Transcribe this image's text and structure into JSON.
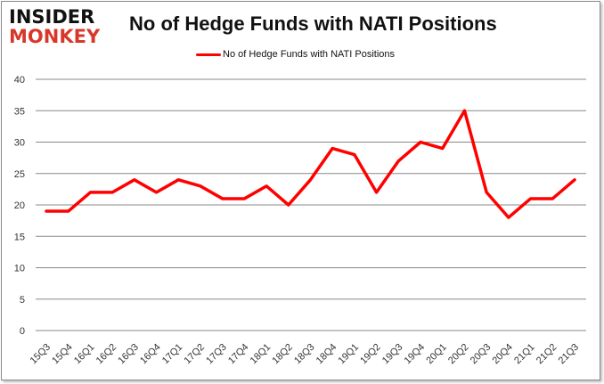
{
  "logo": {
    "line1": "INSIDER",
    "line2": "MONKEY"
  },
  "chart_data": {
    "type": "line",
    "title": "No of Hedge Funds with NATI Positions",
    "xlabel": "",
    "ylabel": "",
    "categories": [
      "15Q3",
      "15Q4",
      "16Q1",
      "16Q2",
      "16Q3",
      "16Q4",
      "17Q1",
      "17Q2",
      "17Q3",
      "17Q4",
      "18Q1",
      "18Q2",
      "18Q3",
      "18Q4",
      "19Q1",
      "19Q2",
      "19Q3",
      "19Q4",
      "20Q1",
      "20Q2",
      "20Q3",
      "20Q4",
      "21Q1",
      "21Q2",
      "21Q3"
    ],
    "series": [
      {
        "name": "No of Hedge Funds with NATI Positions",
        "color": "#ff0000",
        "values": [
          19,
          19,
          22,
          22,
          24,
          22,
          24,
          23,
          21,
          21,
          23,
          20,
          24,
          29,
          28,
          22,
          27,
          30,
          29,
          35,
          22,
          18,
          21,
          21,
          24
        ]
      }
    ],
    "ylim": [
      0,
      40
    ],
    "yticks": [
      0,
      5,
      10,
      15,
      20,
      25,
      30,
      35,
      40
    ],
    "grid": true,
    "legend": "top-center"
  }
}
